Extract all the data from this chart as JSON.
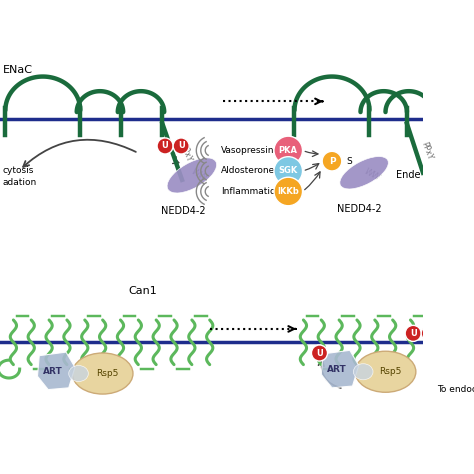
{
  "bg_color": "#ffffff",
  "membrane_color": "#1e2d8c",
  "enac_color": "#1a6b3c",
  "can1_color": "#5cb85c",
  "nedd4_color": "#9b8ec4",
  "ubiquitin_color": "#cc2222",
  "pka_color": "#e8607a",
  "sgk_color": "#7ec8e3",
  "ikkb_color": "#f5a623",
  "phospho_color": "#f5a623",
  "art_color": "#7a9cc4",
  "art_color2": "#a8b8d0",
  "rsp5_color": "#e8d5a0",
  "arrow_color": "#444444",
  "nedd4_label": "NEDD4-2",
  "vasopressin": "Vasopressin",
  "aldosterone": "Aldosterone",
  "inflammation": "Inflammation",
  "can1_label": "Can1",
  "endo_label": "To endoc",
  "ende_label": "Ende",
  "cytosis_line1": "cytosis",
  "cytosis_line2": "adation"
}
